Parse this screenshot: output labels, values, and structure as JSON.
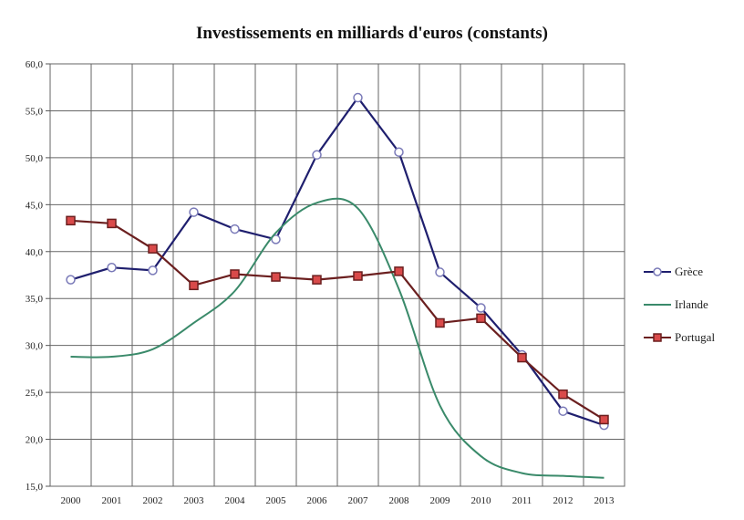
{
  "chart_data": {
    "type": "line",
    "title": "Investissements en milliards d'euros (constants)",
    "xlabel": "",
    "ylabel": "",
    "x": [
      "2000",
      "2001",
      "2002",
      "2003",
      "2004",
      "2005",
      "2006",
      "2007",
      "2008",
      "2009",
      "2010",
      "2011",
      "2012",
      "2013"
    ],
    "ylim": [
      15.0,
      60.0
    ],
    "yticks": [
      "15,0",
      "20,0",
      "25,0",
      "30,0",
      "35,0",
      "40,0",
      "45,0",
      "50,0",
      "55,0",
      "60,0"
    ],
    "grid": true,
    "legend_position": "right",
    "series": [
      {
        "name": "Grèce",
        "color": "#1f1f6e",
        "marker": "circle",
        "values": [
          37.0,
          38.3,
          38.0,
          44.2,
          42.4,
          41.3,
          50.3,
          56.4,
          50.6,
          37.8,
          34.0,
          29.0,
          23.0,
          21.5
        ]
      },
      {
        "name": "Irlande",
        "color": "#3a8a6a",
        "marker": "none",
        "values": [
          28.8,
          28.8,
          29.6,
          32.4,
          35.8,
          42.0,
          45.2,
          44.6,
          36.0,
          23.6,
          18.2,
          16.4,
          16.1,
          15.9
        ]
      },
      {
        "name": "Portugal",
        "color": "#6b1f1f",
        "marker": "square",
        "values": [
          43.3,
          43.0,
          40.3,
          36.4,
          37.6,
          37.3,
          37.0,
          37.4,
          37.9,
          32.4,
          32.9,
          28.7,
          24.8,
          22.1
        ]
      }
    ]
  }
}
